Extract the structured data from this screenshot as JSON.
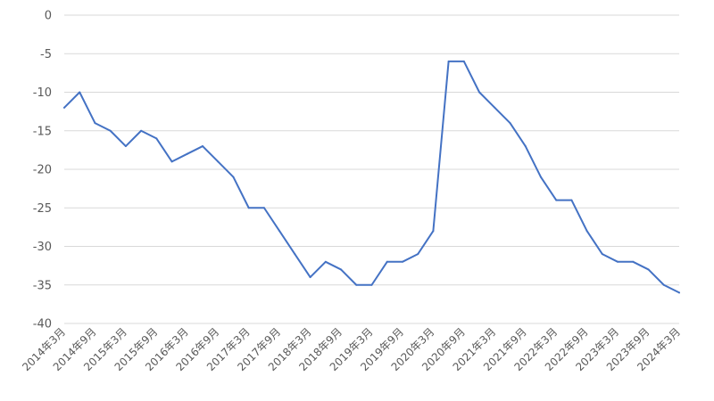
{
  "chart_data": {
    "type": "line",
    "title": "",
    "xlabel": "",
    "ylabel": "",
    "ylim": [
      -40,
      0
    ],
    "yticks": [
      0,
      -5,
      -10,
      -15,
      -20,
      -25,
      -30,
      -35,
      -40
    ],
    "grid": true,
    "legend": "none",
    "x": [
      "2014年3月",
      "2014年6月",
      "2014年9月",
      "2014年12月",
      "2015年3月",
      "2015年6月",
      "2015年9月",
      "2015年12月",
      "2016年3月",
      "2016年6月",
      "2016年9月",
      "2016年12月",
      "2017年3月",
      "2017年6月",
      "2017年9月",
      "2017年12月",
      "2018年3月",
      "2018年6月",
      "2018年9月",
      "2018年12月",
      "2019年3月",
      "2019年6月",
      "2019年9月",
      "2019年12月",
      "2020年3月",
      "2020年6月",
      "2020年9月",
      "2020年12月",
      "2021年3月",
      "2021年6月",
      "2021年9月",
      "2021年12月",
      "2022年3月",
      "2022年6月",
      "2022年9月",
      "2022年12月",
      "2023年3月",
      "2023年6月",
      "2023年9月",
      "2023年12月",
      "2024年3月"
    ],
    "xtick_labels": [
      "2014年3月",
      "2014年9月",
      "2015年3月",
      "2015年9月",
      "2016年3月",
      "2016年9月",
      "2017年3月",
      "2017年9月",
      "2018年3月",
      "2018年9月",
      "2019年3月",
      "2019年9月",
      "2020年3月",
      "2020年9月",
      "2021年3月",
      "2021年9月",
      "2022年3月",
      "2022年9月",
      "2023年3月",
      "2023年9月",
      "2024年3月"
    ],
    "series": [
      {
        "color": "#4472C4",
        "values": [
          -12,
          -10,
          -14,
          -15,
          -17,
          -15,
          -16,
          -19,
          -18,
          -17,
          -19,
          -21,
          -25,
          -25,
          -28,
          -31,
          -34,
          -32,
          -33,
          -35,
          -35,
          -32,
          -32,
          -31,
          -28,
          -6,
          -6,
          -10,
          -12,
          -14,
          -17,
          -21,
          -24,
          -24,
          -28,
          -31,
          -32,
          -32,
          -33,
          -35,
          -36
        ]
      }
    ]
  }
}
